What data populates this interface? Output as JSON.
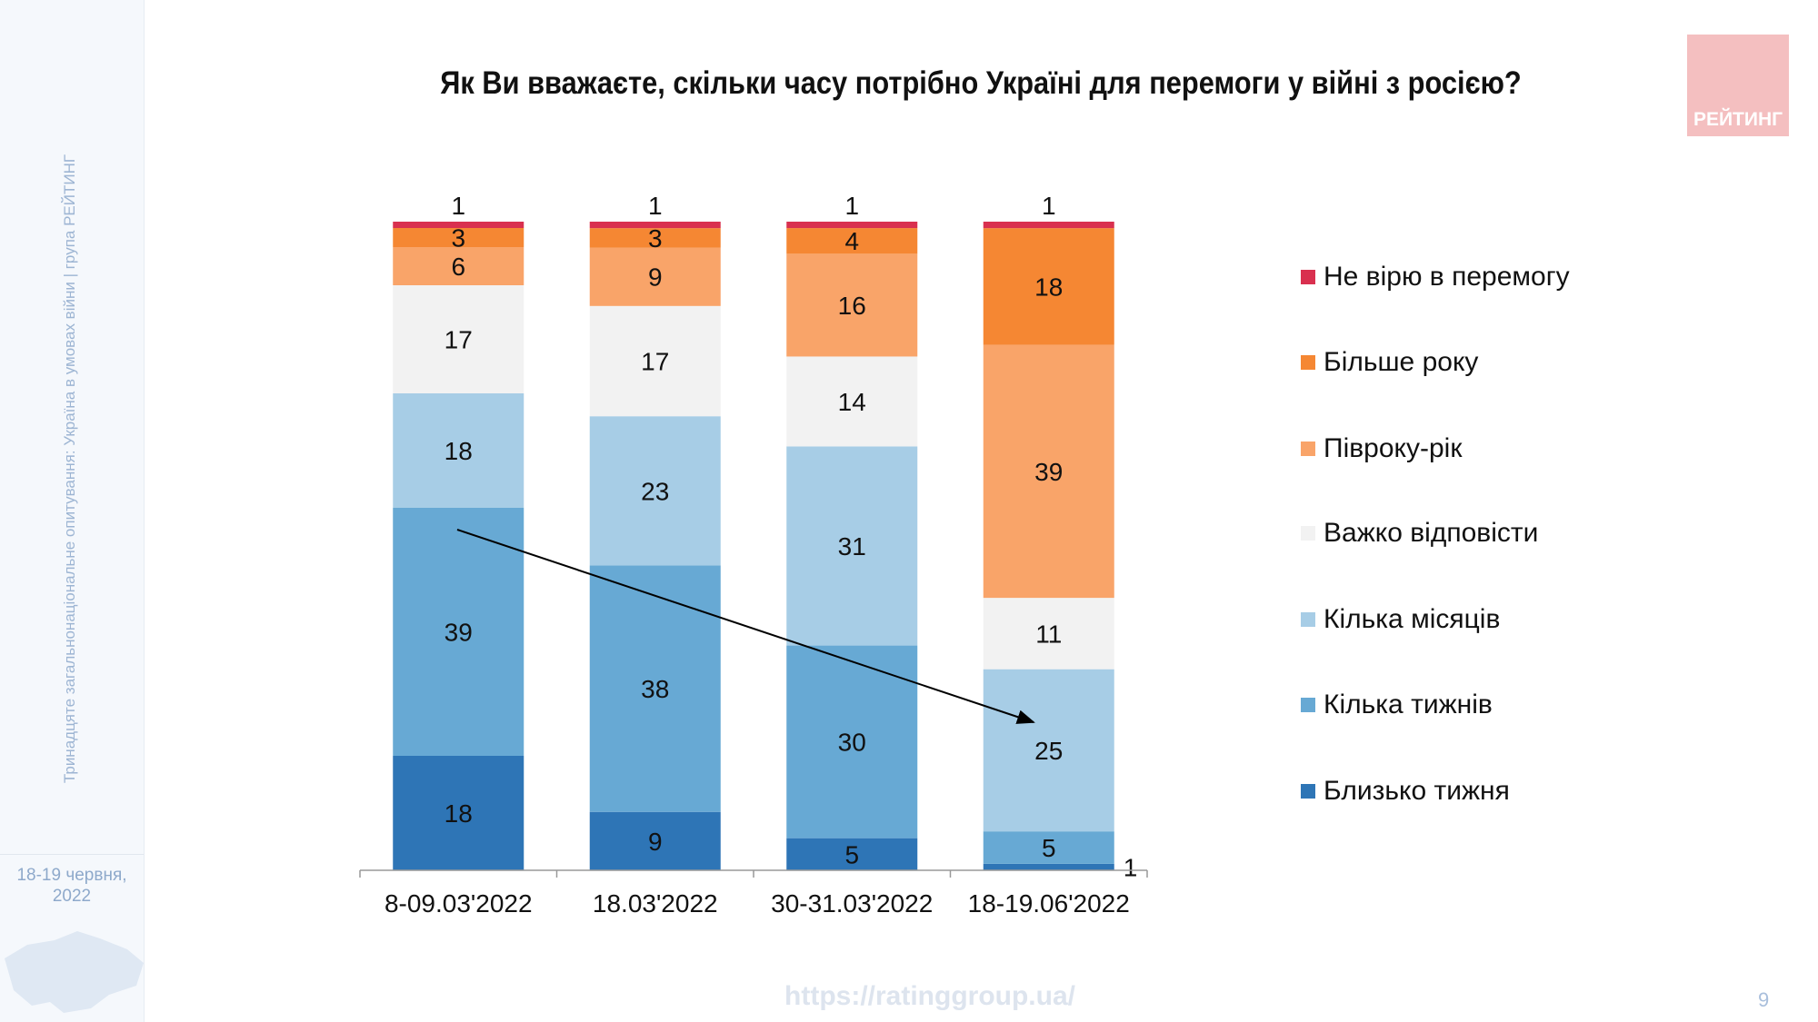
{
  "sidebar": {
    "vertical_text": "Тринадцяте загальнонаціональне опитування: Україна в умовах війни | група РЕЙТИНГ",
    "date": "18-19 червня, 2022"
  },
  "logo": {
    "text": "РЕЙТИНГ",
    "color": "#f4bfc0"
  },
  "footer": {
    "url": "https://ratinggroup.ua/",
    "page": "9"
  },
  "chart_data": {
    "type": "bar",
    "stacked": true,
    "title": "Як Ви вважаєте, скільки часу потрібно Україні для перемоги у війні з росією?",
    "categories": [
      "8-09.03'2022",
      "18.03'2022",
      "30-31.03'2022",
      "18-19.06'2022"
    ],
    "legend_position": "right",
    "grid": false,
    "series": [
      {
        "name": "Близько тижня",
        "color": "#2e75b6",
        "values": [
          18,
          9,
          5,
          1
        ]
      },
      {
        "name": "Кілька тижнів",
        "color": "#67a9d4",
        "values": [
          39,
          38,
          30,
          5
        ]
      },
      {
        "name": "Кілька місяців",
        "color": "#a7cde6",
        "values": [
          18,
          23,
          31,
          25
        ]
      },
      {
        "name": "Важко відповісти",
        "color": "#f2f2f2",
        "values": [
          17,
          17,
          14,
          11
        ]
      },
      {
        "name": "Півроку-рік",
        "color": "#f9a469",
        "values": [
          6,
          9,
          16,
          39
        ]
      },
      {
        "name": "Більше року",
        "color": "#f58733",
        "values": [
          3,
          3,
          4,
          18
        ]
      },
      {
        "name": "Не вірю в перемогу",
        "color": "#d9304f",
        "values": [
          1,
          1,
          1,
          1
        ]
      }
    ],
    "annotation": "trend arrow from Кілька тижнів (8-09.03'2022) to Кілька місяців (18-19.06'2022)"
  }
}
